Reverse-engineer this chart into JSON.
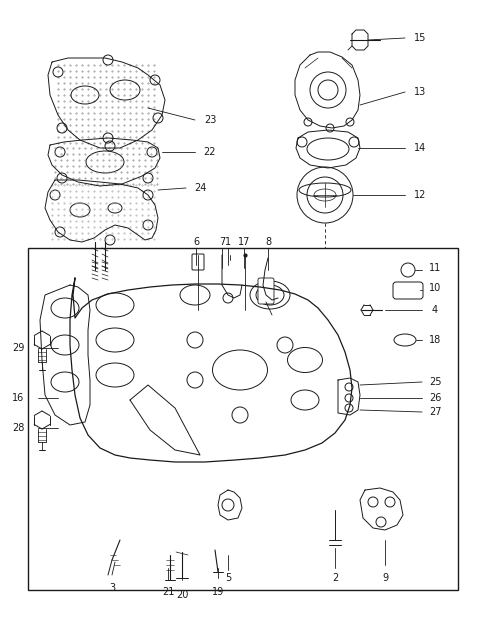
{
  "bg_color": "#ffffff",
  "line_color": "#1a1a1a",
  "fig_width": 4.8,
  "fig_height": 6.24,
  "dpi": 100,
  "font_size": 7.0
}
